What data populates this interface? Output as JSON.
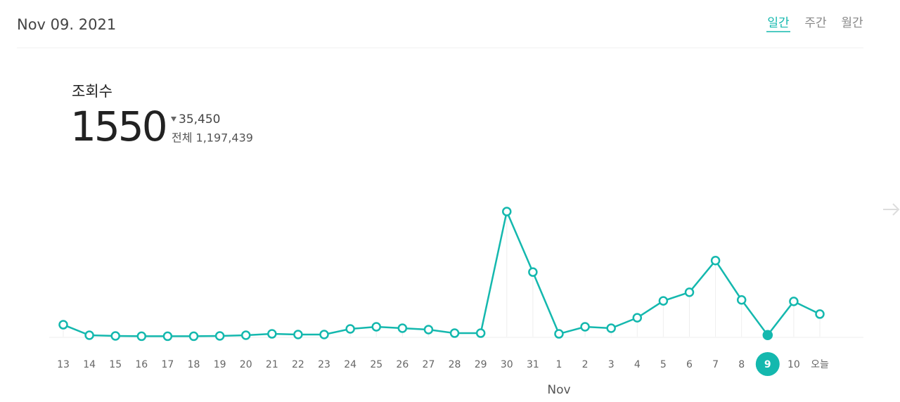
{
  "header": {
    "date": "Nov 09. 2021",
    "tabs": [
      "일간",
      "주간",
      "월간"
    ]
  },
  "stat": {
    "label": "조회수",
    "value": 1550,
    "change": "35,450",
    "total": "전체 1,197,439"
  },
  "chart_data": {
    "type": "line",
    "color": "#14b8ae",
    "categories": [
      "13",
      "14",
      "15",
      "16",
      "17",
      "18",
      "19",
      "20",
      "21",
      "22",
      "23",
      "24",
      "25",
      "26",
      "27",
      "28",
      "29",
      "30",
      "31",
      "1",
      "2",
      "3",
      "4",
      "5",
      "6",
      "7",
      "8",
      "9",
      "10",
      "오늘"
    ],
    "values": [
      12000,
      1400,
      700,
      400,
      400,
      400,
      700,
      1400,
      2800,
      2100,
      2100,
      7800,
      9900,
      8500,
      7100,
      3500,
      3500,
      126000,
      65000,
      2800,
      9900,
      8500,
      19000,
      36000,
      44700,
      76600,
      37000,
      1550,
      35500,
      22700
    ],
    "selected": 27,
    "month_label": {
      "text": "Nov",
      "at": 19
    }
  }
}
